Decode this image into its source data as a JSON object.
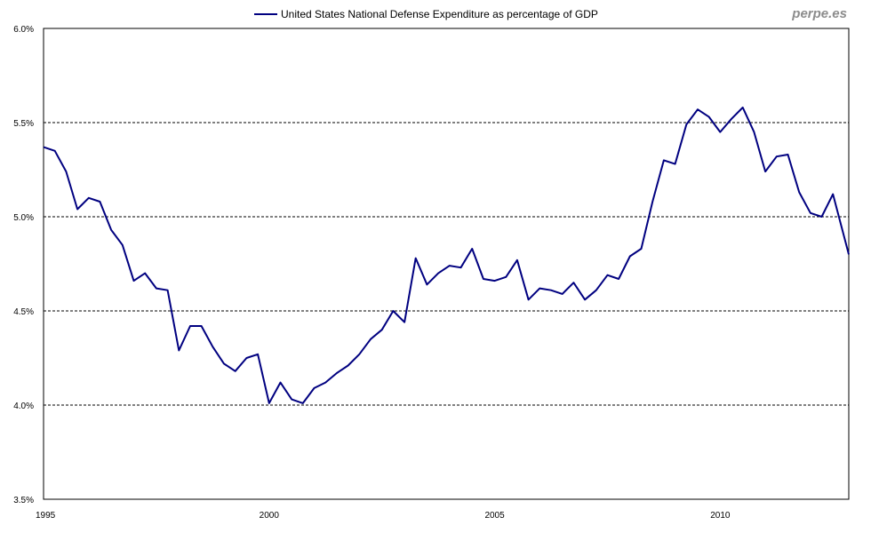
{
  "watermark": "perpe.es",
  "colors": {
    "line": "#000080",
    "grid": "#000000",
    "axis": "#000000",
    "watermark": "#8c8c8c"
  },
  "chart_data": {
    "type": "line",
    "title": "",
    "xlabel": "",
    "ylabel": "",
    "legend": {
      "label": "United States National Defense Expenditure as percentage of GDP",
      "placement": "top-center"
    },
    "xlim": [
      1995,
      2012.85
    ],
    "ylim": [
      3.5,
      6.0
    ],
    "y_ticks": [
      3.5,
      4.0,
      4.5,
      5.0,
      5.5,
      6.0
    ],
    "y_tick_labels": [
      "3.5%",
      "4.0%",
      "4.5%",
      "5.0%",
      "5.5%",
      "6.0%"
    ],
    "x_ticks": [
      1995,
      2000,
      2005,
      2010
    ],
    "x_tick_labels": [
      "1995",
      "2000",
      "2005",
      "2010"
    ],
    "grid": "horizontal dashed at 4.0, 4.5, 5.0, 5.5",
    "series": [
      {
        "name": "United States National Defense Expenditure as percentage of GDP",
        "x": [
          1995.0,
          1995.25,
          1995.5,
          1995.75,
          1996.0,
          1996.25,
          1996.5,
          1996.75,
          1997.0,
          1997.25,
          1997.5,
          1997.75,
          1998.0,
          1998.25,
          1998.5,
          1998.75,
          1999.0,
          1999.25,
          1999.5,
          1999.75,
          2000.0,
          2000.25,
          2000.5,
          2000.75,
          2001.0,
          2001.25,
          2001.5,
          2001.75,
          2002.0,
          2002.25,
          2002.5,
          2002.75,
          2003.0,
          2003.25,
          2003.5,
          2003.75,
          2004.0,
          2004.25,
          2004.5,
          2004.75,
          2005.0,
          2005.25,
          2005.5,
          2005.75,
          2006.0,
          2006.25,
          2006.5,
          2006.75,
          2007.0,
          2007.25,
          2007.5,
          2007.75,
          2008.0,
          2008.25,
          2008.5,
          2008.75,
          2009.0,
          2009.25,
          2009.5,
          2009.75,
          2010.0,
          2010.25,
          2010.5,
          2010.75,
          2011.0,
          2011.25,
          2011.5,
          2011.75,
          2012.0,
          2012.25,
          2012.5,
          2012.85
        ],
        "values": [
          5.37,
          5.35,
          5.24,
          5.04,
          5.1,
          5.08,
          4.93,
          4.85,
          4.66,
          4.7,
          4.62,
          4.61,
          4.29,
          4.42,
          4.42,
          4.31,
          4.22,
          4.18,
          4.25,
          4.27,
          4.01,
          4.12,
          4.03,
          4.01,
          4.09,
          4.12,
          4.17,
          4.21,
          4.27,
          4.35,
          4.4,
          4.5,
          4.44,
          4.78,
          4.64,
          4.7,
          4.74,
          4.73,
          4.83,
          4.67,
          4.66,
          4.68,
          4.77,
          4.56,
          4.62,
          4.61,
          4.59,
          4.65,
          4.56,
          4.61,
          4.69,
          4.67,
          4.79,
          4.83,
          5.08,
          5.3,
          5.28,
          5.49,
          5.57,
          5.53,
          5.45,
          5.52,
          5.58,
          5.45,
          5.24,
          5.32,
          5.33,
          5.13,
          5.02,
          5.0,
          5.12,
          4.8
        ]
      }
    ]
  }
}
